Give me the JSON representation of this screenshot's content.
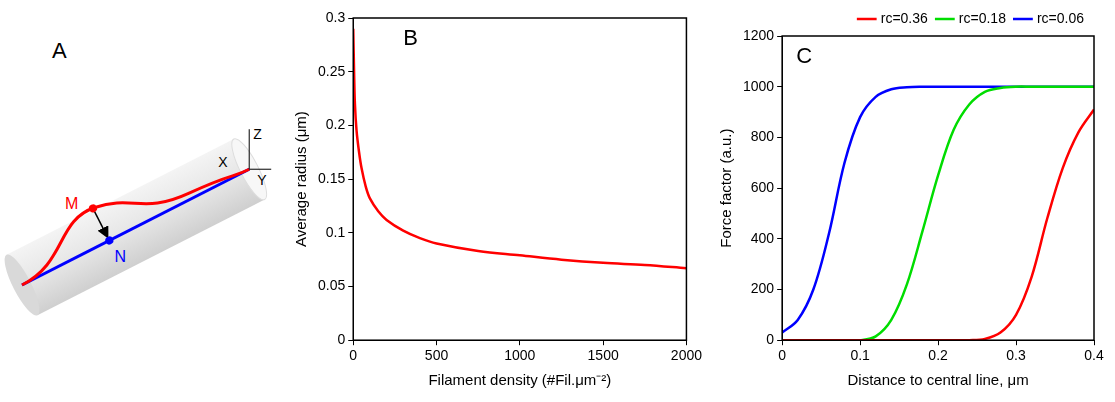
{
  "diagram": {
    "panel": "A",
    "labels": [
      "M",
      "N",
      "X",
      "Y",
      "Z"
    ]
  },
  "chart_data": [
    {
      "panel": "B",
      "type": "line",
      "x_label": "Filament density (#Fil.μm⁻²)",
      "y_label": "Average radius (μm)",
      "x": [
        0,
        5,
        10,
        20,
        35,
        50,
        75,
        100,
        150,
        200,
        300,
        400,
        500,
        750,
        1000,
        1250,
        1500,
        1750,
        2000
      ],
      "values": [
        0.29,
        0.25,
        0.22,
        0.195,
        0.175,
        0.16,
        0.143,
        0.132,
        0.12,
        0.112,
        0.102,
        0.095,
        0.09,
        0.083,
        0.079,
        0.075,
        0.072,
        0.07,
        0.067
      ],
      "color": "#ff0000",
      "xlim": [
        0,
        2000
      ],
      "xticks": [
        0,
        500,
        1000,
        1500,
        2000
      ],
      "ylim": [
        0,
        0.3
      ],
      "yticks": [
        0,
        0.05,
        0.1,
        0.15,
        0.2,
        0.25,
        0.3
      ],
      "grid": false
    },
    {
      "panel": "C",
      "type": "line",
      "x_label": "Distance to central line, μm",
      "y_label": "Force factor (a.u.)",
      "x": [
        0,
        0.02,
        0.04,
        0.06,
        0.08,
        0.1,
        0.12,
        0.14,
        0.16,
        0.18,
        0.2,
        0.22,
        0.24,
        0.26,
        0.28,
        0.3,
        0.32,
        0.34,
        0.36,
        0.38,
        0.4
      ],
      "series": [
        {
          "name": "rc=0.36",
          "color": "#ff0000",
          "values": [
            0,
            0,
            0,
            0,
            0,
            0,
            0,
            0,
            0,
            0,
            0,
            0,
            0,
            5,
            30,
            100,
            250,
            480,
            680,
            820,
            910
          ]
        },
        {
          "name": "rc=0.18",
          "color": "#00dd00",
          "values": [
            0,
            0,
            0,
            0,
            0,
            0,
            15,
            80,
            220,
            430,
            650,
            830,
            930,
            980,
            995,
            1000,
            1000,
            1000,
            1000,
            1000,
            1000
          ]
        },
        {
          "name": "rc=0.06",
          "color": "#0000ff",
          "values": [
            30,
            80,
            200,
            420,
            700,
            880,
            960,
            990,
            998,
            1000,
            1000,
            1000,
            1000,
            1000,
            1000,
            1000,
            1000,
            1000,
            1000,
            1000,
            1000
          ]
        }
      ],
      "xlim": [
        0,
        0.4
      ],
      "xticks": [
        0,
        0.1,
        0.2,
        0.3,
        0.4
      ],
      "ylim": [
        0,
        1200
      ],
      "yticks": [
        0,
        200,
        400,
        600,
        800,
        1000,
        1200
      ],
      "legend": "top",
      "grid": false
    }
  ]
}
